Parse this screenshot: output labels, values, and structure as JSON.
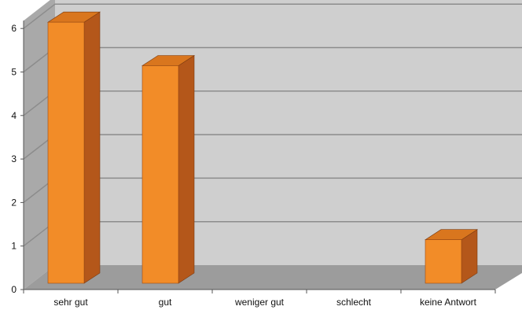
{
  "chart_data": {
    "type": "bar",
    "categories": [
      "sehr gut",
      "gut",
      "weniger gut",
      "schlecht",
      "keine Antwort"
    ],
    "values": [
      6,
      5,
      0,
      0,
      1
    ],
    "ylim": [
      0,
      6
    ],
    "yticks": [
      "0",
      "1",
      "2",
      "3",
      "4",
      "5",
      "6"
    ],
    "grid": true,
    "legend": "none",
    "colors": {
      "bar_front": "#f28c28",
      "bar_side": "#b4571a",
      "bar_top": "#d9761e",
      "back_wall": "#cfcfcf",
      "side_wall": "#a9a9a9",
      "floor": "#9c9c9c",
      "gridline": "#8c8c8c"
    }
  }
}
